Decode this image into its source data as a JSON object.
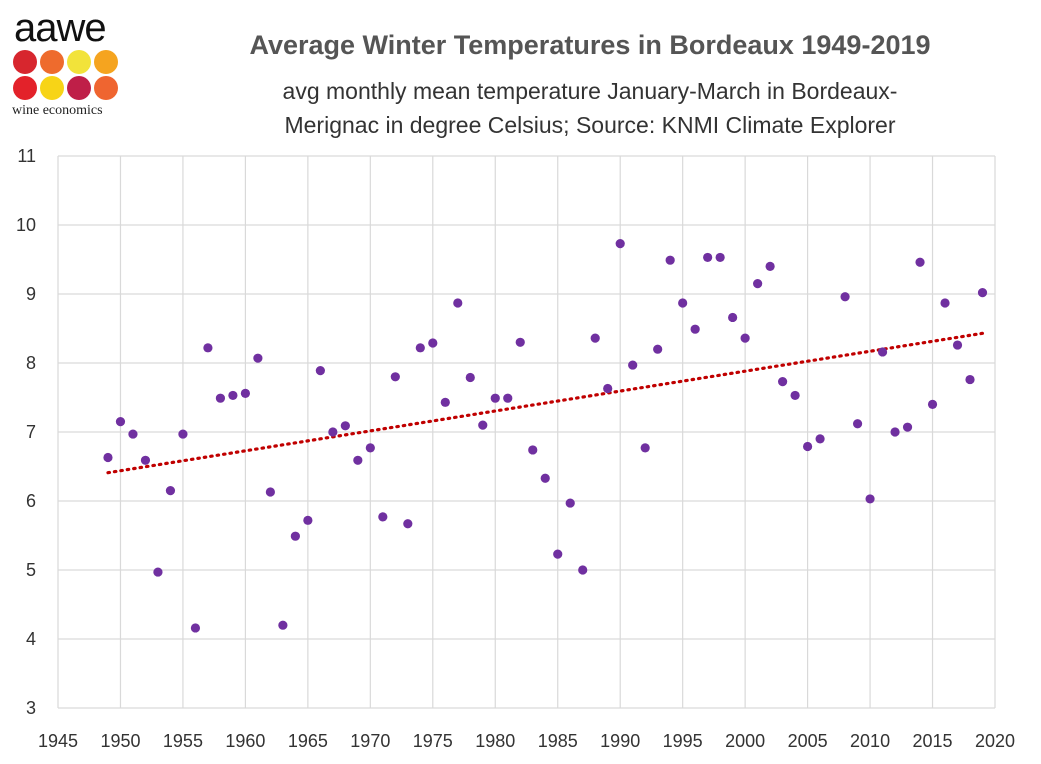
{
  "logo": {
    "word": "aawe",
    "tagline": "wine economics",
    "dot_colors": [
      "#d7262e",
      "#ee6b2d",
      "#f2e33a",
      "#f5a41f",
      "#e3222a",
      "#f7d417",
      "#bf1f48",
      "#ef6530"
    ]
  },
  "title": "Average Winter Temperatures in Bordeaux 1949-2019",
  "subtitle_line1": "avg monthly mean temperature January-March in  Bordeaux-",
  "subtitle_line2": "Merignac in degree Celsius; Source: KNMI Climate Explorer",
  "chart_data": {
    "type": "scatter",
    "xlim": [
      1945,
      2020
    ],
    "ylim": [
      3,
      11
    ],
    "x_ticks": [
      1945,
      1950,
      1955,
      1960,
      1965,
      1970,
      1975,
      1980,
      1985,
      1990,
      1995,
      2000,
      2005,
      2010,
      2015,
      2020
    ],
    "y_ticks": [
      3,
      4,
      5,
      6,
      7,
      8,
      9,
      10,
      11
    ],
    "grid": true,
    "point_color": "#7030a0",
    "trend_color": "#c00000",
    "trendline": {
      "type": "linear",
      "x": [
        1949,
        2019
      ],
      "y": [
        6.41,
        8.43
      ]
    },
    "points": [
      [
        1949,
        6.63
      ],
      [
        1950,
        7.15
      ],
      [
        1951,
        6.97
      ],
      [
        1952,
        6.59
      ],
      [
        1953,
        4.97
      ],
      [
        1954,
        6.15
      ],
      [
        1955,
        6.97
      ],
      [
        1956,
        4.16
      ],
      [
        1957,
        8.22
      ],
      [
        1958,
        7.49
      ],
      [
        1959,
        7.53
      ],
      [
        1960,
        7.56
      ],
      [
        1961,
        8.07
      ],
      [
        1962,
        6.13
      ],
      [
        1963,
        4.2
      ],
      [
        1964,
        5.49
      ],
      [
        1965,
        5.72
      ],
      [
        1966,
        7.89
      ],
      [
        1967,
        7.0
      ],
      [
        1968,
        7.09
      ],
      [
        1969,
        6.59
      ],
      [
        1970,
        6.77
      ],
      [
        1971,
        5.77
      ],
      [
        1972,
        7.8
      ],
      [
        1973,
        5.67
      ],
      [
        1974,
        8.22
      ],
      [
        1975,
        8.29
      ],
      [
        1976,
        7.43
      ],
      [
        1977,
        8.87
      ],
      [
        1978,
        7.79
      ],
      [
        1979,
        7.1
      ],
      [
        1980,
        7.49
      ],
      [
        1981,
        7.49
      ],
      [
        1982,
        8.3
      ],
      [
        1983,
        6.74
      ],
      [
        1984,
        6.33
      ],
      [
        1985,
        5.23
      ],
      [
        1986,
        5.97
      ],
      [
        1987,
        5.0
      ],
      [
        1988,
        8.36
      ],
      [
        1989,
        7.63
      ],
      [
        1990,
        9.73
      ],
      [
        1991,
        7.97
      ],
      [
        1992,
        6.77
      ],
      [
        1993,
        8.2
      ],
      [
        1994,
        9.49
      ],
      [
        1995,
        8.87
      ],
      [
        1996,
        8.49
      ],
      [
        1997,
        9.53
      ],
      [
        1998,
        9.53
      ],
      [
        1999,
        8.66
      ],
      [
        2000,
        8.36
      ],
      [
        2001,
        9.15
      ],
      [
        2002,
        9.4
      ],
      [
        2003,
        7.73
      ],
      [
        2004,
        7.53
      ],
      [
        2005,
        6.79
      ],
      [
        2006,
        6.9
      ],
      [
        2008,
        8.96
      ],
      [
        2009,
        7.12
      ],
      [
        2010,
        6.03
      ],
      [
        2011,
        8.16
      ],
      [
        2012,
        7.0
      ],
      [
        2013,
        7.07
      ],
      [
        2014,
        9.46
      ],
      [
        2015,
        7.4
      ],
      [
        2016,
        8.87
      ],
      [
        2017,
        8.26
      ],
      [
        2018,
        7.76
      ],
      [
        2019,
        9.02
      ]
    ]
  }
}
